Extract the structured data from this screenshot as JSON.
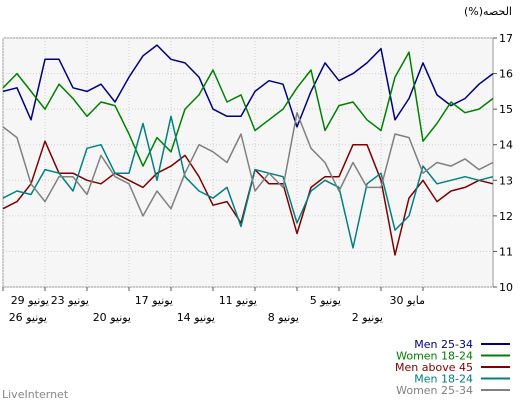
{
  "chart_data": {
    "type": "line",
    "ylabel": "(%)الحصه",
    "ylim": [
      10,
      17
    ],
    "yticks": [
      10,
      11,
      12,
      13,
      14,
      15,
      16,
      17
    ],
    "grid": true,
    "legend_position": "bottom-right",
    "x": [
      0,
      1,
      2,
      3,
      4,
      5,
      6,
      7,
      8,
      9,
      10,
      11,
      12,
      13,
      14,
      15,
      16,
      17,
      18,
      19,
      20,
      21,
      22,
      23,
      24,
      25,
      26,
      27,
      28,
      29,
      30,
      31,
      32,
      33,
      34,
      35
    ],
    "xticks": [
      {
        "index": 0,
        "label": "29 يونيو",
        "row": 1
      },
      {
        "index": 3,
        "label": "26 يونيو",
        "row": 2
      },
      {
        "index": 6,
        "label": "23 يونيو",
        "row": 1
      },
      {
        "index": 9,
        "label": "20 يونيو",
        "row": 2
      },
      {
        "index": 12,
        "label": "17 يونيو",
        "row": 1
      },
      {
        "index": 15,
        "label": "14 يونيو",
        "row": 2
      },
      {
        "index": 18,
        "label": "11 يونيو",
        "row": 1
      },
      {
        "index": 21,
        "label": "8 يونيو",
        "row": 2
      },
      {
        "index": 24,
        "label": "5 يونيو",
        "row": 1
      },
      {
        "index": 27,
        "label": "2 يونيو",
        "row": 2
      },
      {
        "index": 30,
        "label": "30 مايو",
        "row": 1
      }
    ],
    "series": [
      {
        "name": "Men 25-34",
        "color": "#000080",
        "values": [
          15.5,
          15.6,
          14.7,
          16.4,
          16.4,
          15.6,
          15.5,
          15.7,
          15.2,
          15.9,
          16.5,
          16.8,
          16.4,
          16.3,
          15.9,
          15.0,
          14.8,
          14.8,
          15.5,
          15.8,
          15.7,
          14.5,
          15.5,
          16.3,
          15.8,
          16.0,
          16.3,
          16.7,
          14.7,
          15.3,
          16.3,
          15.4,
          15.1,
          15.3,
          15.7,
          16.0
        ]
      },
      {
        "name": "Women 18-24",
        "color": "#008000",
        "values": [
          15.6,
          16.0,
          15.5,
          15.0,
          15.7,
          15.3,
          14.8,
          15.2,
          15.1,
          14.3,
          13.4,
          14.2,
          13.8,
          15.0,
          15.4,
          16.1,
          15.2,
          15.4,
          14.4,
          14.7,
          15.0,
          15.6,
          16.1,
          14.4,
          15.1,
          15.2,
          14.7,
          14.4,
          15.9,
          16.6,
          14.1,
          14.6,
          15.2,
          14.9,
          15.0,
          15.3
        ]
      },
      {
        "name": "Men above 45",
        "color": "#800000",
        "values": [
          12.2,
          12.4,
          12.9,
          14.1,
          13.2,
          13.2,
          13.0,
          12.9,
          13.2,
          13.0,
          12.8,
          13.2,
          13.4,
          13.7,
          13.1,
          12.3,
          12.4,
          11.8,
          13.3,
          12.9,
          12.9,
          11.5,
          12.8,
          13.1,
          13.1,
          14.0,
          14.0,
          13.0,
          10.9,
          12.5,
          13.0,
          12.4,
          12.7,
          12.8,
          13.0,
          12.9
        ]
      },
      {
        "name": "Men 18-24",
        "color": "#008080",
        "values": [
          12.5,
          12.7,
          12.6,
          13.3,
          13.2,
          12.7,
          13.9,
          14.0,
          13.2,
          13.2,
          14.6,
          13.0,
          14.8,
          13.1,
          12.7,
          12.5,
          12.8,
          11.7,
          13.3,
          13.2,
          13.1,
          11.8,
          12.7,
          13.0,
          12.8,
          11.1,
          12.9,
          13.2,
          11.6,
          12.0,
          13.4,
          12.9,
          13.0,
          13.1,
          13.0,
          13.1
        ]
      },
      {
        "name": "Women 25-34",
        "color": "#808080",
        "values": [
          14.5,
          14.2,
          12.9,
          12.4,
          13.1,
          13.1,
          12.6,
          13.7,
          13.1,
          12.9,
          12.0,
          12.7,
          12.2,
          13.2,
          14.0,
          13.8,
          13.5,
          14.3,
          12.7,
          13.2,
          12.8,
          14.9,
          13.9,
          13.5,
          12.7,
          13.5,
          12.8,
          12.8,
          14.3,
          14.2,
          13.2,
          13.5,
          13.4,
          13.6,
          13.3,
          13.5
        ]
      }
    ]
  },
  "branding": {
    "text": "LiveInternet"
  }
}
